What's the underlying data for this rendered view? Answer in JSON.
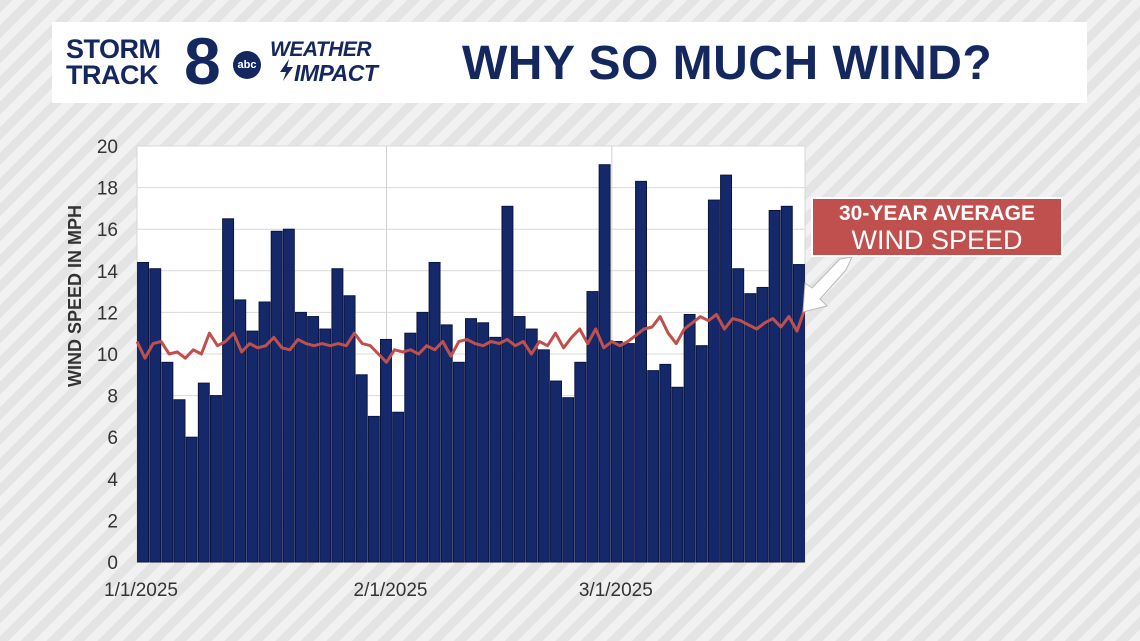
{
  "header": {
    "logo_storm": "STORM",
    "logo_track": "TRACK",
    "logo_eight": "8",
    "logo_abc": "abc",
    "logo_weather": "WEATHER",
    "logo_impact": "IMPACT",
    "title": "WHY SO MUCH WIND?"
  },
  "callout": {
    "line1": "30-YEAR AVERAGE",
    "line2": "WIND SPEED"
  },
  "colors": {
    "brand_navy": "#14275e",
    "bar_fill": "#15286a",
    "avg_line": "#c0504d"
  },
  "chart_data": {
    "type": "bar",
    "title": "",
    "xlabel": "",
    "ylabel": "WIND SPEED IN MPH",
    "ylim": [
      0,
      20
    ],
    "yticks": [
      "0",
      "2",
      "4",
      "6",
      "8",
      "10",
      "12",
      "14",
      "16",
      "18",
      "20"
    ],
    "xtick_labels": [
      "1/1/2025",
      "2/1/2025",
      "3/1/2025"
    ],
    "grid": true,
    "start_date": "1/1/2025",
    "series": [
      {
        "chart_type": "bar",
        "values": [
          14.4,
          14.1,
          9.6,
          7.8,
          6.0,
          8.6,
          8.0,
          16.5,
          12.6,
          11.1,
          12.5,
          15.9,
          16.0,
          12.0,
          11.8,
          11.2,
          14.1,
          12.8,
          9.0,
          7.0,
          10.7,
          7.2,
          11.0,
          12.0,
          14.4,
          11.4,
          9.6,
          11.7,
          11.5,
          10.8,
          17.1,
          11.8,
          11.2,
          10.2,
          8.7,
          7.9,
          9.6,
          13.0,
          19.1,
          10.6,
          10.5,
          18.3,
          9.2,
          9.5,
          8.4,
          11.9,
          10.4,
          17.4,
          18.6,
          14.1,
          12.9,
          13.2,
          16.9,
          17.1,
          14.3
        ]
      },
      {
        "chart_type": "line",
        "values": [
          10.6,
          9.8,
          10.5,
          10.6,
          10.0,
          10.1,
          9.8,
          10.2,
          10.0,
          11.0,
          10.4,
          10.6,
          11.0,
          10.1,
          10.5,
          10.3,
          10.4,
          10.8,
          10.3,
          10.2,
          10.7,
          10.5,
          10.4,
          10.5,
          10.4,
          10.5,
          10.4,
          11.0,
          10.5,
          10.4,
          10.0,
          9.6,
          10.2,
          10.1,
          10.2,
          10.0,
          10.4,
          10.2,
          10.6,
          9.9,
          10.6,
          10.7,
          10.5,
          10.4,
          10.6,
          10.5,
          10.7,
          10.4,
          10.6,
          10.0,
          10.6,
          10.4,
          11.0,
          10.3,
          10.8,
          11.2,
          10.5,
          11.2,
          10.3,
          10.6,
          10.4,
          10.6,
          10.9,
          11.2,
          11.3,
          11.8,
          11.0,
          10.5,
          11.2,
          11.5,
          11.8,
          11.6,
          11.9,
          11.2,
          11.7,
          11.6,
          11.4,
          11.2,
          11.5,
          11.7,
          11.3,
          11.8,
          11.1,
          12.2
        ]
      }
    ]
  }
}
